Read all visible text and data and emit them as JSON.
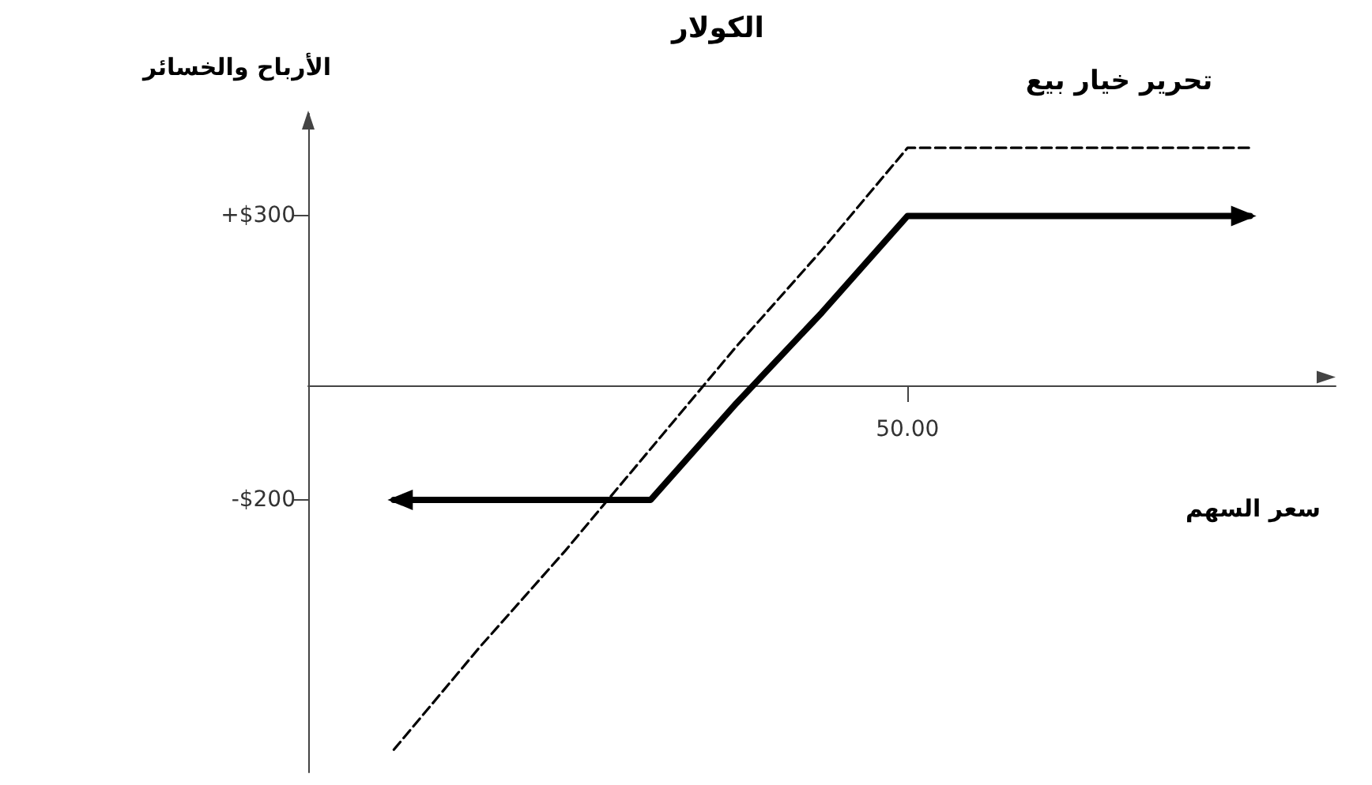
{
  "chart_data": {
    "type": "line",
    "title": "الكولار",
    "xlabel": "سعر السهم",
    "ylabel": "الأرباح والخسائر",
    "categories": [
      null,
      null,
      null,
      null,
      null,
      null,
      null,
      "50.00",
      null,
      null,
      null,
      null,
      null
    ],
    "series": [
      {
        "name": "تحرير خيار بيع",
        "color": "#000000",
        "line_style": "dashed",
        "values": [
          null,
          -640,
          -460,
          -290,
          -110,
          70,
          240,
          420,
          420,
          420,
          420,
          420,
          null
        ]
      },
      {
        "color": "#000000",
        "line_style": "solid",
        "values": [
          null,
          -200,
          -200,
          -200,
          -200,
          -30,
          130,
          300,
          300,
          300,
          300,
          300,
          null
        ]
      }
    ],
    "ylim": [
      -680,
      480
    ],
    "yticks": [
      {
        "value": 300,
        "label": "+$300"
      },
      {
        "value": -200,
        "label": "-$200"
      }
    ],
    "grid": false,
    "legend": false
  }
}
